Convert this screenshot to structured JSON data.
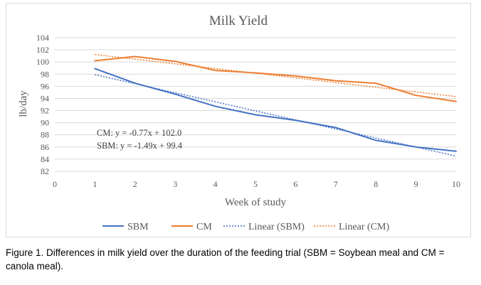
{
  "chart_data": {
    "type": "line",
    "title": "Milk Yield",
    "xlabel": "Week of study",
    "ylabel": "lb/day",
    "xlim": [
      0,
      10
    ],
    "ylim": [
      82,
      104
    ],
    "x_ticks": [
      0,
      1,
      2,
      3,
      4,
      5,
      6,
      7,
      8,
      9,
      10
    ],
    "y_ticks": [
      82,
      84,
      86,
      88,
      90,
      92,
      94,
      96,
      98,
      100,
      102,
      104
    ],
    "grid": true,
    "legend_position": "bottom",
    "x": [
      1,
      2,
      3,
      4,
      5,
      6,
      7,
      8,
      9,
      10
    ],
    "series": [
      {
        "name": "SBM",
        "style": "solid",
        "color": "#4472c4",
        "values": [
          98.9,
          96.5,
          94.7,
          92.7,
          91.3,
          90.4,
          89.2,
          87.1,
          86.0,
          85.3
        ]
      },
      {
        "name": "CM",
        "style": "solid",
        "color": "#ed7d31",
        "values": [
          100.2,
          100.9,
          100.1,
          98.6,
          98.2,
          97.7,
          96.9,
          96.5,
          94.5,
          93.5
        ]
      },
      {
        "name": "Linear (SBM)",
        "style": "dotted",
        "color": "#4472c4",
        "trend": {
          "slope": -1.49,
          "intercept": 99.4
        }
      },
      {
        "name": "Linear (CM)",
        "style": "dotted",
        "color": "#ed7d31",
        "trend": {
          "slope": -0.77,
          "intercept": 102.0
        }
      }
    ],
    "annotations": [
      "CM: y = -0.77x + 102.0",
      "SBM: y = -1.49x + 99.4"
    ]
  },
  "caption": "Figure 1. Differences in milk yield over the duration of the feeding trial (SBM = Soybean meal and CM = canola meal).",
  "colors": {
    "sbm": "#4472c4",
    "cm": "#ed7d31",
    "grid": "#d9d9d9",
    "text": "#595959"
  }
}
